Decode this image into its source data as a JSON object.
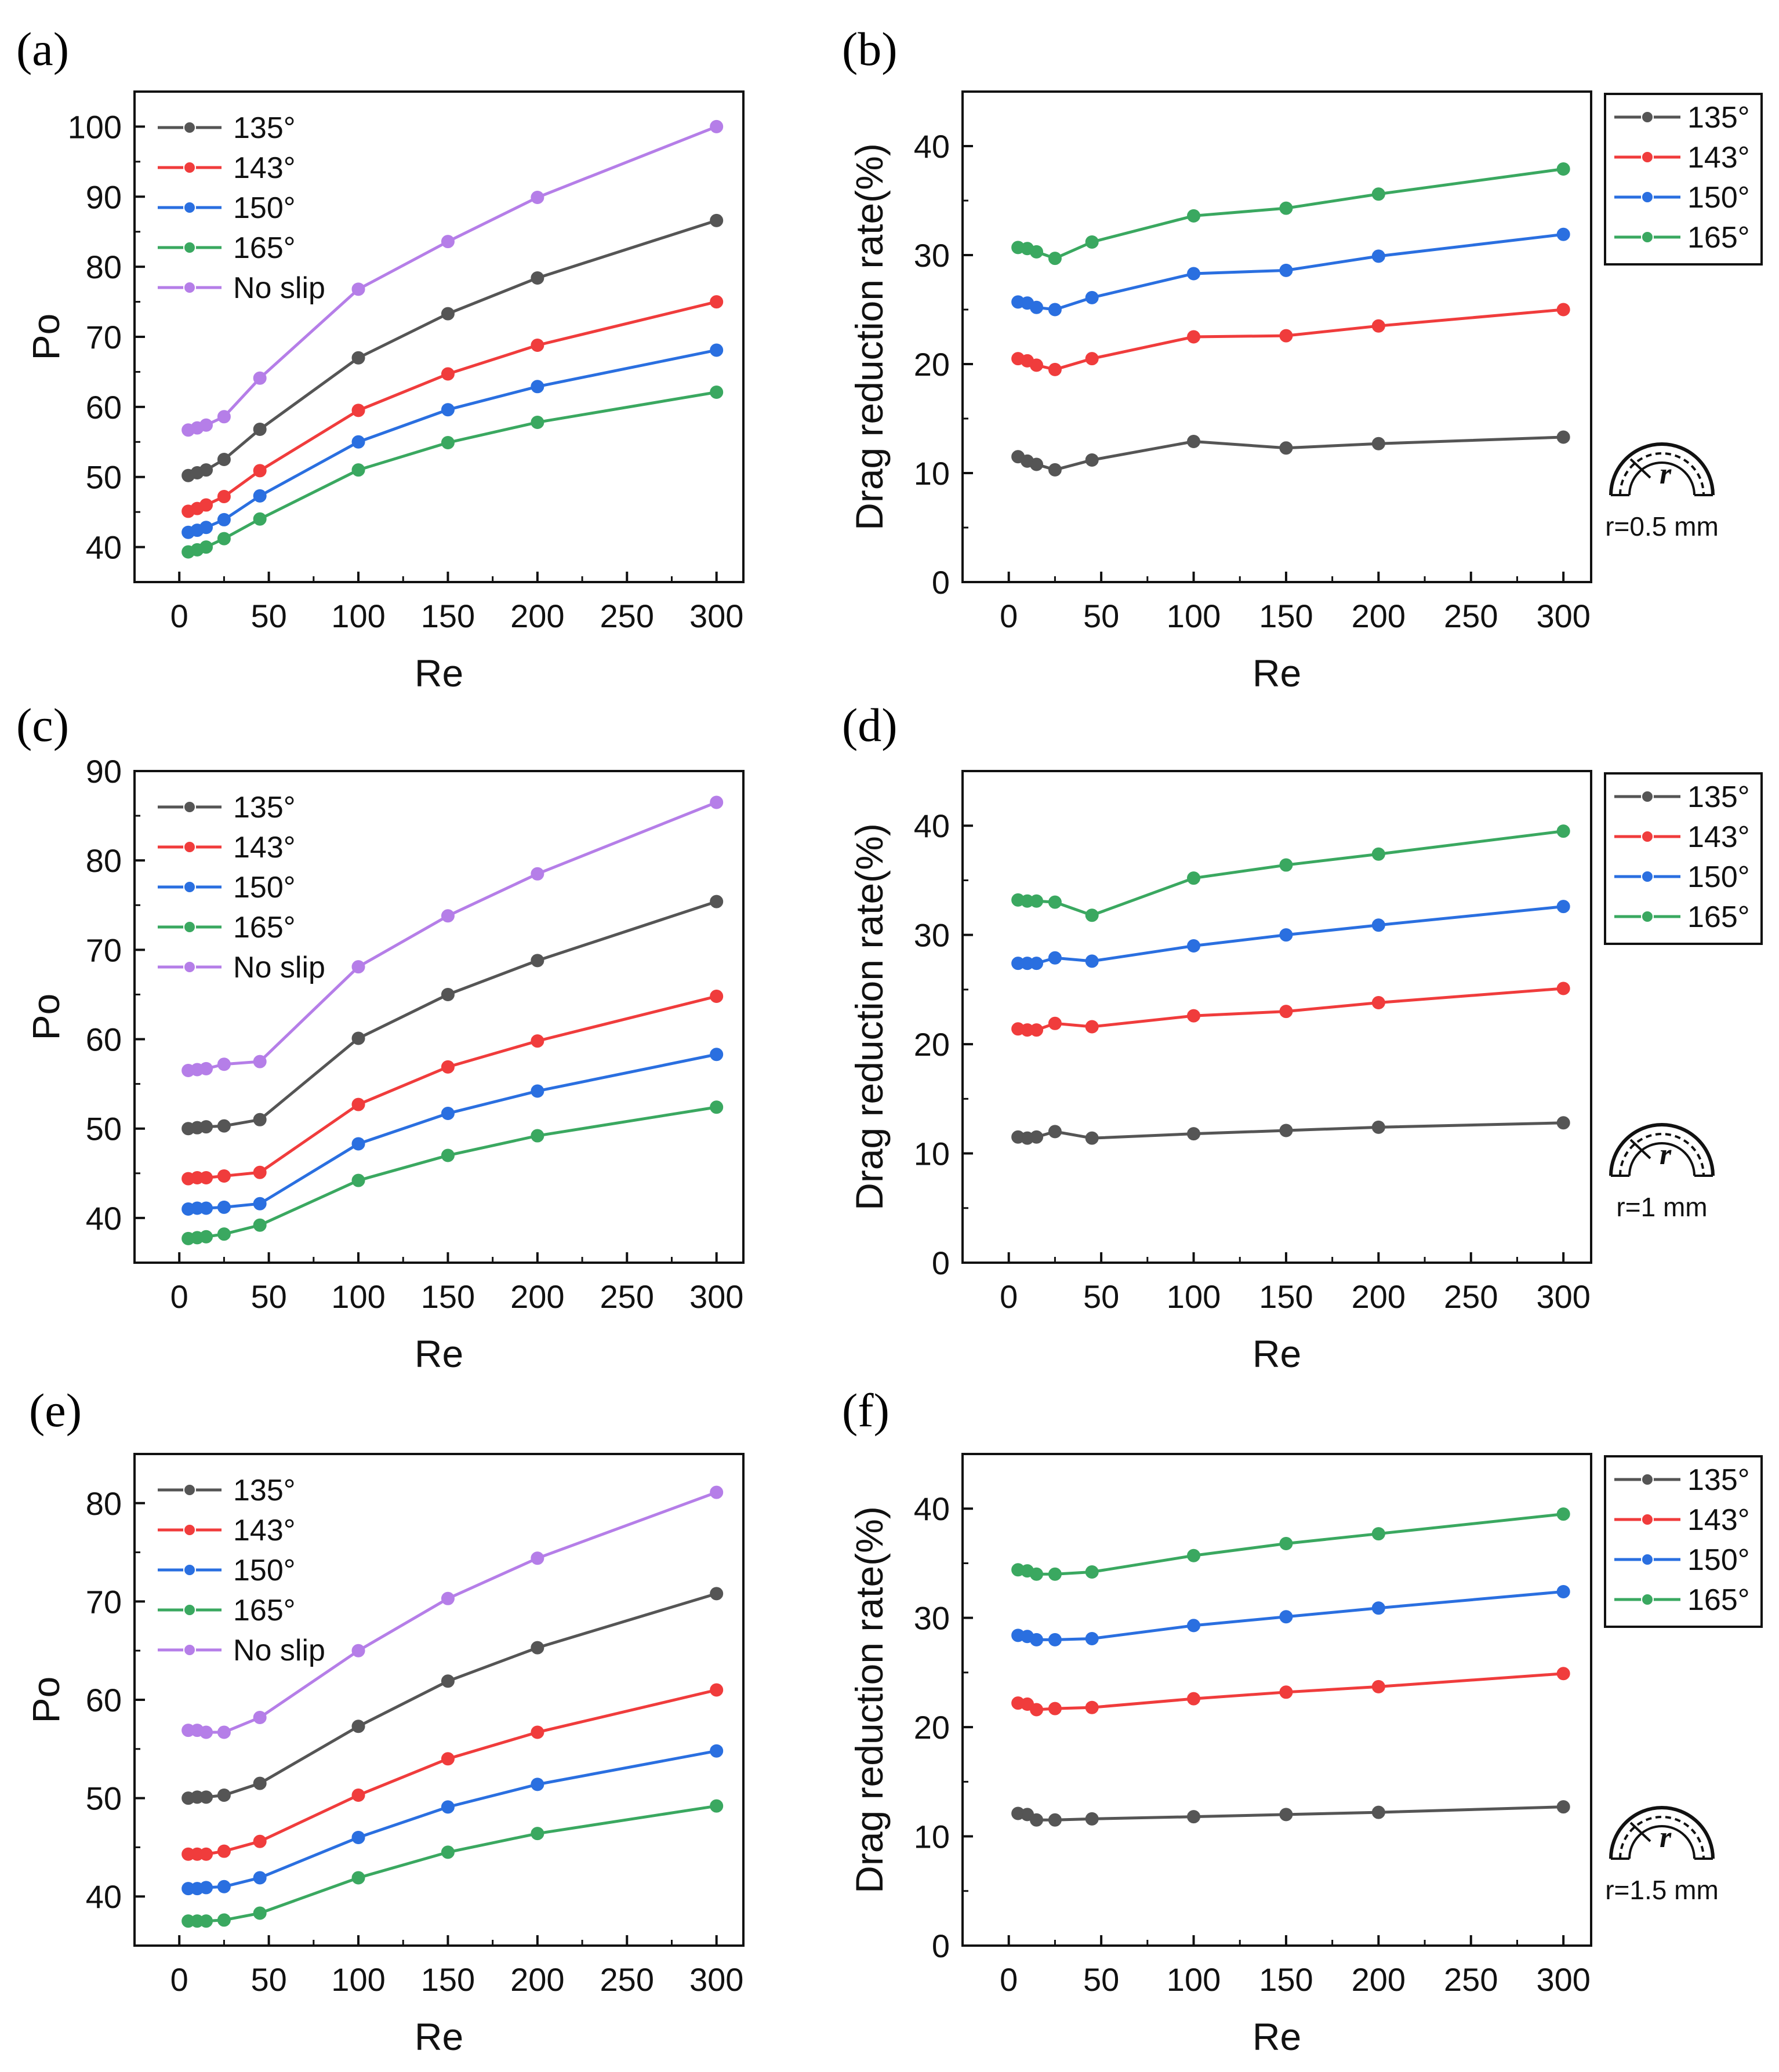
{
  "colors": {
    "135°": "#555555",
    "143°": "#f03c3c",
    "150°": "#2a6fe0",
    "165°": "#3aa860",
    "No slip": "#b57ee8"
  },
  "chart_data": [
    {
      "id": "a",
      "panel_label": "(a)",
      "type": "line",
      "xlabel": "Re",
      "ylabel": "Po",
      "xlim": [
        -25,
        315
      ],
      "ylim": [
        35,
        105
      ],
      "xticks": [
        0,
        50,
        100,
        150,
        200,
        250,
        300
      ],
      "xtick_labels": [
        "0",
        "50",
        "100",
        "150",
        "200",
        "250",
        "300"
      ],
      "yticks": [
        40,
        50,
        60,
        70,
        80,
        90,
        100
      ],
      "ytick_labels": [
        "40",
        "50",
        "60",
        "70",
        "80",
        "90",
        "100"
      ],
      "legend_position": "top-left",
      "legend_box": false,
      "x": [
        5,
        10,
        15,
        25,
        45,
        100,
        150,
        200,
        300
      ],
      "series": [
        {
          "name": "135°",
          "values": [
            50.2,
            50.6,
            51.0,
            52.5,
            56.8,
            67.0,
            73.3,
            78.4,
            86.6
          ]
        },
        {
          "name": "143°",
          "values": [
            45.1,
            45.5,
            46.0,
            47.2,
            50.9,
            59.5,
            64.7,
            68.8,
            75.0
          ]
        },
        {
          "name": "150°",
          "values": [
            42.1,
            42.4,
            42.8,
            43.9,
            47.3,
            55.0,
            59.6,
            62.9,
            68.1
          ]
        },
        {
          "name": "165°",
          "values": [
            39.3,
            39.6,
            40.0,
            41.2,
            44.0,
            51.0,
            54.9,
            57.8,
            62.1
          ]
        },
        {
          "name": "No slip",
          "values": [
            56.7,
            57.0,
            57.4,
            58.6,
            64.1,
            76.8,
            83.6,
            89.9,
            100.0
          ]
        }
      ]
    },
    {
      "id": "b",
      "panel_label": "(b)",
      "type": "line",
      "xlabel": "Re",
      "ylabel": "Drag reduction rate(%)",
      "xlim": [
        -25,
        315
      ],
      "ylim": [
        0,
        45
      ],
      "xticks": [
        0,
        50,
        100,
        150,
        200,
        250,
        300
      ],
      "xtick_labels": [
        "0",
        "50",
        "100",
        "150",
        "200",
        "250",
        "300"
      ],
      "yticks": [
        0,
        10,
        20,
        30,
        40
      ],
      "ytick_labels": [
        "0",
        "10",
        "20",
        "30",
        "40"
      ],
      "legend_position": "outside-right-top",
      "legend_box": true,
      "inset_label": "r=0.5 mm",
      "inset_symbol": "r",
      "x": [
        5,
        10,
        15,
        25,
        45,
        100,
        150,
        200,
        300
      ],
      "series": [
        {
          "name": "135°",
          "values": [
            11.5,
            11.1,
            10.8,
            10.3,
            11.2,
            12.9,
            12.3,
            12.7,
            13.3
          ]
        },
        {
          "name": "143°",
          "values": [
            20.5,
            20.3,
            19.9,
            19.5,
            20.5,
            22.5,
            22.6,
            23.5,
            25.0
          ]
        },
        {
          "name": "150°",
          "values": [
            25.7,
            25.6,
            25.2,
            25.0,
            26.1,
            28.3,
            28.6,
            29.9,
            31.9
          ]
        },
        {
          "name": "165°",
          "values": [
            30.7,
            30.6,
            30.3,
            29.7,
            31.2,
            33.6,
            34.3,
            35.6,
            37.9
          ]
        }
      ]
    },
    {
      "id": "c",
      "panel_label": "(c)",
      "type": "line",
      "xlabel": "Re",
      "ylabel": "Po",
      "xlim": [
        -25,
        315
      ],
      "ylim": [
        35,
        90
      ],
      "xticks": [
        0,
        50,
        100,
        150,
        200,
        250,
        300
      ],
      "xtick_labels": [
        "0",
        "50",
        "100",
        "150",
        "200",
        "250",
        "300"
      ],
      "yticks": [
        40,
        50,
        60,
        70,
        80,
        90
      ],
      "ytick_labels": [
        "40",
        "50",
        "60",
        "70",
        "80",
        "90"
      ],
      "legend_position": "top-left",
      "legend_box": false,
      "x": [
        5,
        10,
        15,
        25,
        45,
        100,
        150,
        200,
        300
      ],
      "series": [
        {
          "name": "135°",
          "values": [
            50.0,
            50.1,
            50.2,
            50.3,
            51.0,
            60.1,
            65.0,
            68.8,
            75.4
          ]
        },
        {
          "name": "143°",
          "values": [
            44.4,
            44.5,
            44.5,
            44.7,
            45.1,
            52.7,
            56.9,
            59.8,
            64.8
          ]
        },
        {
          "name": "150°",
          "values": [
            41.0,
            41.1,
            41.1,
            41.2,
            41.6,
            48.3,
            51.7,
            54.2,
            58.3
          ]
        },
        {
          "name": "165°",
          "values": [
            37.7,
            37.8,
            37.9,
            38.2,
            39.2,
            44.2,
            47.0,
            49.2,
            52.4
          ]
        },
        {
          "name": "No slip",
          "values": [
            56.5,
            56.6,
            56.7,
            57.2,
            57.5,
            68.1,
            73.8,
            78.5,
            86.5
          ]
        }
      ]
    },
    {
      "id": "d",
      "panel_label": "(d)",
      "type": "line",
      "xlabel": "Re",
      "ylabel": "Drag reduction rate(%)",
      "xlim": [
        -25,
        315
      ],
      "ylim": [
        0,
        45
      ],
      "xticks": [
        0,
        50,
        100,
        150,
        200,
        250,
        300
      ],
      "xtick_labels": [
        "0",
        "50",
        "100",
        "150",
        "200",
        "250",
        "300"
      ],
      "yticks": [
        0,
        10,
        20,
        30,
        40
      ],
      "ytick_labels": [
        "0",
        "10",
        "20",
        "30",
        "40"
      ],
      "legend_position": "outside-right-top",
      "legend_box": true,
      "inset_label": "r=1 mm",
      "inset_symbol": "r",
      "x": [
        5,
        10,
        15,
        25,
        45,
        100,
        150,
        200,
        300
      ],
      "series": [
        {
          "name": "135°",
          "values": [
            11.5,
            11.4,
            11.5,
            12.0,
            11.4,
            11.8,
            12.1,
            12.4,
            12.8
          ]
        },
        {
          "name": "143°",
          "values": [
            21.4,
            21.3,
            21.3,
            21.9,
            21.6,
            22.6,
            23.0,
            23.8,
            25.1
          ]
        },
        {
          "name": "150°",
          "values": [
            27.4,
            27.4,
            27.4,
            27.9,
            27.6,
            29.0,
            30.0,
            30.9,
            32.6
          ]
        },
        {
          "name": "165°",
          "values": [
            33.2,
            33.1,
            33.1,
            33.0,
            31.8,
            35.2,
            36.4,
            37.4,
            39.5
          ]
        }
      ]
    },
    {
      "id": "e",
      "panel_label": "(e)",
      "type": "line",
      "xlabel": "Re",
      "ylabel": "Po",
      "xlim": [
        -25,
        315
      ],
      "ylim": [
        35,
        85
      ],
      "xticks": [
        0,
        50,
        100,
        150,
        200,
        250,
        300
      ],
      "xtick_labels": [
        "0",
        "50",
        "100",
        "150",
        "200",
        "250",
        "300"
      ],
      "yticks": [
        40,
        50,
        60,
        70,
        80
      ],
      "ytick_labels": [
        "40",
        "50",
        "60",
        "70",
        "80"
      ],
      "legend_position": "top-left",
      "legend_box": false,
      "x": [
        5,
        10,
        15,
        25,
        45,
        100,
        150,
        200,
        300
      ],
      "series": [
        {
          "name": "135°",
          "values": [
            50.0,
            50.1,
            50.1,
            50.3,
            51.5,
            57.3,
            61.9,
            65.3,
            70.8
          ]
        },
        {
          "name": "143°",
          "values": [
            44.3,
            44.3,
            44.3,
            44.6,
            45.6,
            50.3,
            54.0,
            56.7,
            61.0
          ]
        },
        {
          "name": "150°",
          "values": [
            40.8,
            40.8,
            40.9,
            41.0,
            41.9,
            46.0,
            49.1,
            51.4,
            54.8
          ]
        },
        {
          "name": "165°",
          "values": [
            37.5,
            37.5,
            37.5,
            37.6,
            38.3,
            41.9,
            44.5,
            46.4,
            49.2
          ]
        },
        {
          "name": "No slip",
          "values": [
            56.9,
            56.9,
            56.7,
            56.7,
            58.2,
            65.0,
            70.3,
            74.4,
            81.1
          ]
        }
      ]
    },
    {
      "id": "f",
      "panel_label": "(f)",
      "type": "line",
      "xlabel": "Re",
      "ylabel": "Drag reduction rate(%)",
      "xlim": [
        -25,
        315
      ],
      "ylim": [
        0,
        45
      ],
      "xticks": [
        0,
        50,
        100,
        150,
        200,
        250,
        300
      ],
      "xtick_labels": [
        "0",
        "50",
        "100",
        "150",
        "200",
        "250",
        "300"
      ],
      "yticks": [
        0,
        10,
        20,
        30,
        40
      ],
      "ytick_labels": [
        "0",
        "10",
        "20",
        "30",
        "40"
      ],
      "legend_position": "outside-right-top",
      "legend_box": true,
      "inset_label": "r=1.5 mm",
      "inset_symbol": "r",
      "x": [
        5,
        10,
        15,
        25,
        45,
        100,
        150,
        200,
        300
      ],
      "series": [
        {
          "name": "135°",
          "values": [
            12.1,
            12.0,
            11.5,
            11.5,
            11.6,
            11.8,
            12.0,
            12.2,
            12.7
          ]
        },
        {
          "name": "143°",
          "values": [
            22.2,
            22.1,
            21.6,
            21.7,
            21.8,
            22.6,
            23.2,
            23.7,
            24.9
          ]
        },
        {
          "name": "150°",
          "values": [
            28.4,
            28.3,
            28.0,
            28.0,
            28.1,
            29.3,
            30.1,
            30.9,
            32.4
          ]
        },
        {
          "name": "165°",
          "values": [
            34.4,
            34.3,
            34.0,
            34.0,
            34.2,
            35.7,
            36.8,
            37.7,
            39.5
          ]
        }
      ]
    }
  ]
}
